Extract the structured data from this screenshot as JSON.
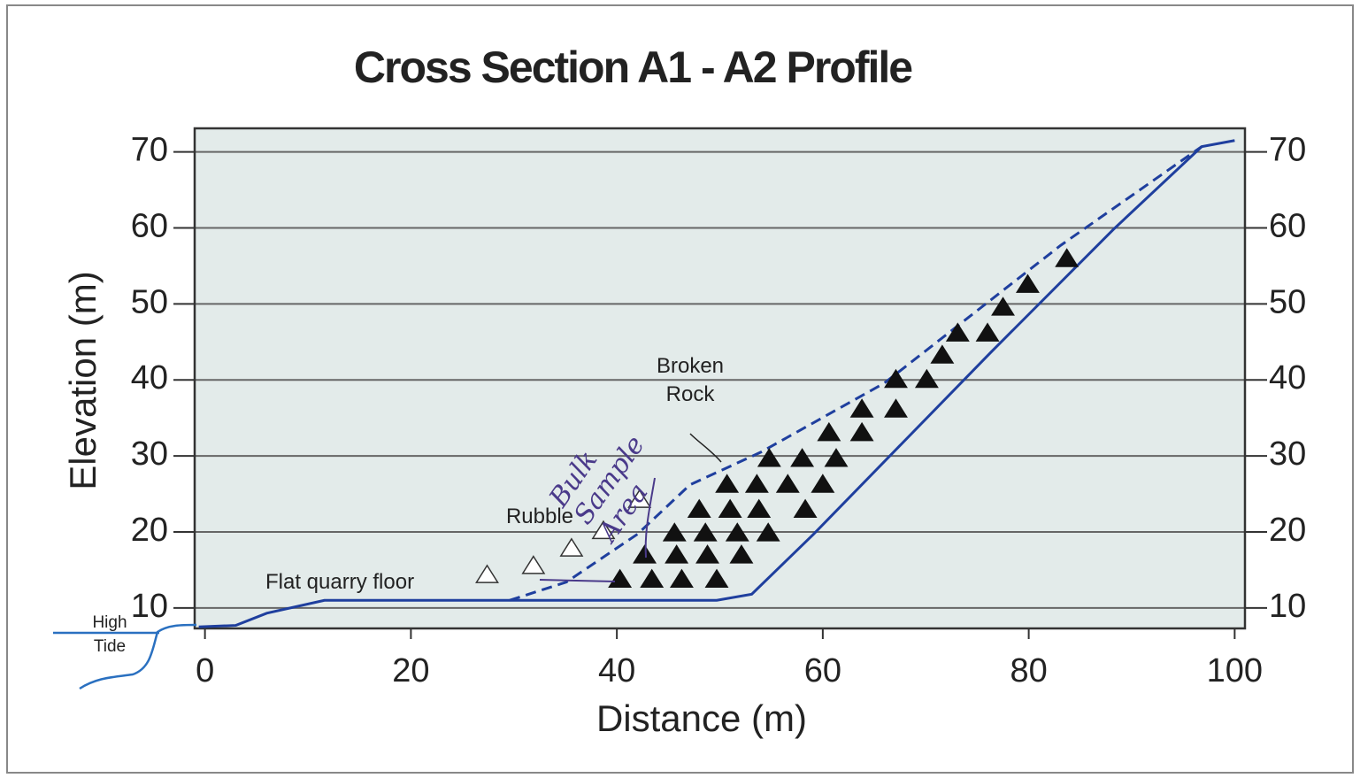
{
  "chart_data": {
    "type": "line",
    "title": "Cross Section A1 - A2 Profile",
    "x_label": "Distance (m)",
    "y_label": "Elevation (m)",
    "xlim": [
      -1,
      101
    ],
    "ylim": [
      7.3,
      73.1
    ],
    "xticks": [
      0,
      20,
      40,
      60,
      80,
      100
    ],
    "yticks": [
      10,
      20,
      30,
      40,
      50,
      60,
      70
    ],
    "grid": true,
    "background": "#e3ebea",
    "series": [
      {
        "style": "solid",
        "color": "#1f3f9e",
        "x": [
          -0.6,
          3,
          6,
          11.6,
          49.7,
          53.1,
          59.1,
          76.3,
          88.3,
          96.8,
          100
        ],
        "values": [
          7.5,
          7.7,
          9.3,
          11,
          11,
          11.8,
          19.7,
          43.6,
          59.9,
          70.7,
          71.5
        ]
      },
      {
        "style": "dashed",
        "color": "#1f3f9e",
        "x": [
          29.6,
          35.1,
          42,
          47.1,
          54,
          66,
          83.1,
          96.8
        ],
        "values": [
          11,
          13.4,
          19.7,
          26.2,
          30.5,
          39.6,
          57.7,
          70.7
        ]
      },
      {
        "style": "filled-triangle",
        "color": "#111111",
        "x": [
          40.3,
          43.4,
          46.3,
          49.7,
          42.7,
          45.8,
          48.8,
          52.1,
          45.6,
          48.6,
          51.7,
          54.7,
          48,
          51,
          53.8,
          58.3,
          50.7,
          53.6,
          56.6,
          60,
          54.8,
          58,
          61.3,
          60.6,
          63.8,
          63.8,
          67.1,
          67.1,
          70.1,
          71.6,
          73.1,
          76,
          77.5,
          79.9,
          83.7
        ],
        "values": [
          13.7,
          13.7,
          13.7,
          13.7,
          16.9,
          16.9,
          16.9,
          16.9,
          19.8,
          19.8,
          19.8,
          19.8,
          22.9,
          22.9,
          22.9,
          22.9,
          26.2,
          26.2,
          26.2,
          26.2,
          29.6,
          29.6,
          29.6,
          33,
          33,
          36.1,
          36.1,
          40,
          40,
          43.2,
          46.1,
          46.1,
          49.5,
          52.5,
          55.9
        ]
      },
      {
        "style": "open-triangle",
        "color": "#ffffff",
        "x": [
          27.4,
          31.9,
          35.6,
          38.7,
          42.2
        ],
        "values": [
          14.3,
          15.5,
          17.8,
          20.1,
          24.2
        ]
      }
    ],
    "annotations": [
      "Broken Rock",
      "Rubble",
      "Flat quarry floor",
      "High Tide",
      "Bulk Sample Area"
    ]
  }
}
